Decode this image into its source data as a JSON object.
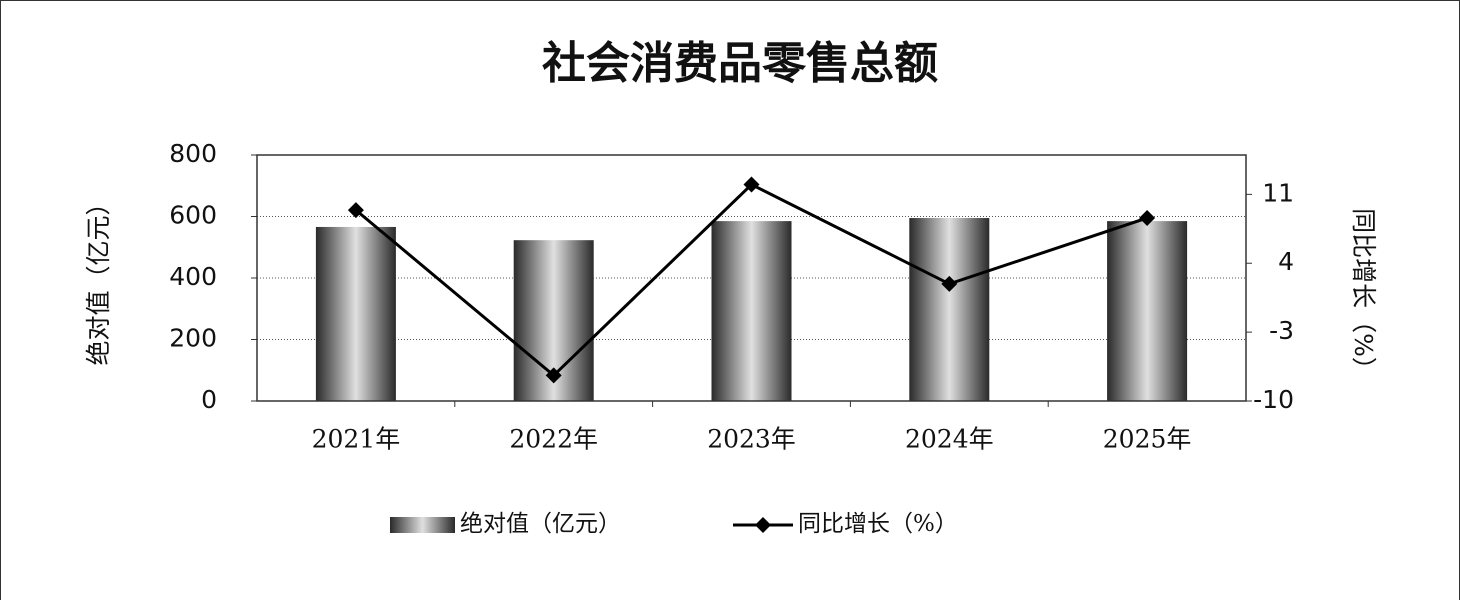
{
  "chart_data": {
    "type": "bar_line",
    "title": "社会消费品零售总额",
    "categories": [
      "2021年",
      "2022年",
      "2023年",
      "2024年",
      "2025年"
    ],
    "series": [
      {
        "name": "绝对值（亿元）",
        "type": "bar",
        "color": "#e0e0e0",
        "values": [
          566,
          523,
          585,
          595,
          585
        ]
      },
      {
        "name": "同比增长（%）",
        "type": "line",
        "axis": "y2",
        "color": "#000000",
        "values": [
          9.4,
          -7.4,
          12,
          1.9,
          8.6
        ]
      }
    ],
    "y_label": "绝对值（亿元）",
    "y2_label": "同比增长（%）",
    "ylim": [
      0,
      800
    ],
    "yticks": [
      0,
      200,
      400,
      600,
      800
    ],
    "y2lim": [
      -10,
      15
    ],
    "y2ticks": [
      -10,
      -3,
      4,
      11
    ],
    "grid": true,
    "legend": "bottom"
  }
}
